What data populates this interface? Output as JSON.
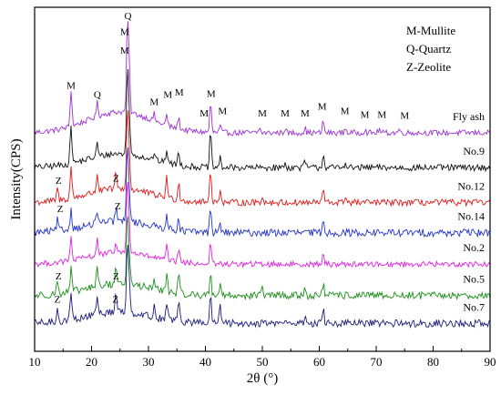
{
  "chart_data": {
    "type": "line",
    "xlabel": "2θ (°)",
    "ylabel": "Intensity(CPS)",
    "xlim": [
      10,
      90
    ],
    "x_ticks": [
      10,
      20,
      30,
      40,
      50,
      60,
      70,
      80,
      90
    ],
    "grid": false,
    "legend": {
      "placement": "top-right",
      "entries": [
        "M-Mullite",
        "Q-Quartz",
        "Z-Zeolite"
      ]
    },
    "series": [
      {
        "name": "Fly ash",
        "color": "#9b2fd8",
        "baseline": 8.2,
        "noise": 0.12,
        "hump": 0.9,
        "peaks": [
          [
            16.4,
            1.6
          ],
          [
            21.0,
            0.6
          ],
          [
            26.3,
            3.7
          ],
          [
            26.6,
            2.0
          ],
          [
            31.0,
            0.3
          ],
          [
            33.2,
            0.45
          ],
          [
            35.3,
            0.5
          ],
          [
            40.9,
            1.3
          ],
          [
            42.6,
            0.3
          ],
          [
            49.5,
            0.2
          ],
          [
            54.0,
            0.2
          ],
          [
            57.5,
            0.2
          ],
          [
            60.7,
            0.5
          ],
          [
            64.6,
            0.2
          ],
          [
            68.0,
            0.15
          ],
          [
            70.5,
            0.15
          ],
          [
            74.0,
            0.15
          ]
        ]
      },
      {
        "name": "No.9",
        "color": "#111111",
        "baseline": 6.7,
        "noise": 0.14,
        "hump": 0.6,
        "peaks": [
          [
            16.4,
            1.7
          ],
          [
            21.0,
            0.6
          ],
          [
            26.3,
            3.5
          ],
          [
            26.6,
            1.8
          ],
          [
            31.0,
            0.3
          ],
          [
            33.2,
            0.6
          ],
          [
            35.3,
            0.6
          ],
          [
            40.9,
            1.5
          ],
          [
            42.6,
            0.4
          ],
          [
            54.0,
            0.2
          ],
          [
            57.5,
            0.3
          ],
          [
            60.7,
            0.6
          ],
          [
            64.6,
            0.3
          ]
        ]
      },
      {
        "name": "No.12",
        "color": "#e01818",
        "baseline": 5.2,
        "noise": 0.14,
        "hump": 0.6,
        "peaks": [
          [
            14.0,
            0.5
          ],
          [
            16.4,
            1.4
          ],
          [
            21.0,
            0.8
          ],
          [
            24.3,
            0.7
          ],
          [
            26.3,
            3.3
          ],
          [
            26.6,
            1.6
          ],
          [
            33.2,
            0.9
          ],
          [
            35.3,
            0.8
          ],
          [
            40.9,
            1.5
          ],
          [
            42.6,
            0.6
          ],
          [
            50.0,
            0.3
          ],
          [
            60.7,
            0.6
          ],
          [
            64.6,
            0.3
          ]
        ]
      },
      {
        "name": "No.14",
        "color": "#2233cc",
        "baseline": 3.9,
        "noise": 0.16,
        "hump": 0.5,
        "peaks": [
          [
            14.0,
            0.5
          ],
          [
            16.4,
            0.9
          ],
          [
            21.0,
            0.6
          ],
          [
            24.3,
            0.6
          ],
          [
            26.3,
            3.2
          ],
          [
            26.6,
            1.4
          ],
          [
            33.2,
            0.7
          ],
          [
            35.3,
            0.6
          ],
          [
            40.9,
            1.1
          ],
          [
            42.6,
            0.4
          ],
          [
            60.7,
            0.5
          ]
        ]
      },
      {
        "name": "No.2",
        "color": "#e020e0",
        "baseline": 2.55,
        "noise": 0.12,
        "hump": 0.5,
        "peaks": [
          [
            16.4,
            1.0
          ],
          [
            21.0,
            0.7
          ],
          [
            24.3,
            0.5
          ],
          [
            26.3,
            3.1
          ],
          [
            26.6,
            1.3
          ],
          [
            33.2,
            0.6
          ],
          [
            35.3,
            0.6
          ],
          [
            40.9,
            0.9
          ],
          [
            60.7,
            0.4
          ]
        ]
      },
      {
        "name": "No.5",
        "color": "#1a8f1a",
        "baseline": 1.2,
        "noise": 0.16,
        "hump": 0.5,
        "peaks": [
          [
            14.0,
            0.6
          ],
          [
            16.4,
            1.0
          ],
          [
            21.0,
            0.9
          ],
          [
            24.3,
            0.8
          ],
          [
            26.3,
            3.0
          ],
          [
            26.6,
            1.3
          ],
          [
            31.0,
            0.4
          ],
          [
            33.2,
            0.8
          ],
          [
            35.3,
            0.8
          ],
          [
            40.9,
            1.0
          ],
          [
            42.6,
            0.6
          ],
          [
            50.0,
            0.4
          ],
          [
            57.5,
            0.3
          ],
          [
            60.7,
            0.5
          ]
        ]
      },
      {
        "name": "No.7",
        "color": "#1c1c7a",
        "baseline": 0.0,
        "noise": 0.16,
        "hump": 0.5,
        "peaks": [
          [
            14.0,
            0.6
          ],
          [
            16.4,
            1.3
          ],
          [
            21.0,
            0.9
          ],
          [
            24.3,
            0.8
          ],
          [
            26.3,
            3.0
          ],
          [
            26.6,
            1.3
          ],
          [
            31.0,
            0.4
          ],
          [
            33.2,
            0.8
          ],
          [
            35.3,
            1.0
          ],
          [
            40.9,
            1.2
          ],
          [
            42.6,
            0.8
          ],
          [
            50.0,
            0.3
          ],
          [
            54.0,
            0.2
          ],
          [
            57.5,
            0.3
          ],
          [
            60.7,
            0.6
          ]
        ]
      }
    ],
    "peak_labels": [
      {
        "text": "M",
        "x": 16.4,
        "y": 10.1
      },
      {
        "text": "Q",
        "x": 21.0,
        "y": 9.7
      },
      {
        "text": "Q",
        "x": 26.4,
        "y": 13.1
      },
      {
        "text": "M",
        "x": 25.8,
        "y": 12.4
      },
      {
        "text": "M",
        "x": 25.8,
        "y": 11.6
      },
      {
        "text": "M",
        "x": 31.0,
        "y": 9.4
      },
      {
        "text": "M",
        "x": 33.4,
        "y": 9.7
      },
      {
        "text": "M",
        "x": 35.4,
        "y": 9.8
      },
      {
        "text": "M",
        "x": 39.8,
        "y": 8.9
      },
      {
        "text": "M",
        "x": 41.0,
        "y": 9.75
      },
      {
        "text": "M",
        "x": 43.0,
        "y": 9.0
      },
      {
        "text": "M",
        "x": 50.0,
        "y": 8.9
      },
      {
        "text": "M",
        "x": 54.0,
        "y": 8.9
      },
      {
        "text": "M",
        "x": 57.5,
        "y": 8.9
      },
      {
        "text": "M",
        "x": 60.5,
        "y": 9.2
      },
      {
        "text": "M",
        "x": 64.5,
        "y": 9.0
      },
      {
        "text": "M",
        "x": 68.0,
        "y": 8.85
      },
      {
        "text": "M",
        "x": 71.0,
        "y": 8.85
      },
      {
        "text": "M",
        "x": 75.0,
        "y": 8.8
      },
      {
        "text": "Z",
        "x": 14.2,
        "y": 6.0
      },
      {
        "text": "Z",
        "x": 24.3,
        "y": 6.1
      },
      {
        "text": "Z",
        "x": 14.5,
        "y": 4.8
      },
      {
        "text": "Z",
        "x": 24.6,
        "y": 4.9
      },
      {
        "text": "Z",
        "x": 14.2,
        "y": 1.9
      },
      {
        "text": "Z",
        "x": 24.3,
        "y": 1.9
      },
      {
        "text": "Z",
        "x": 14.0,
        "y": 0.9
      },
      {
        "text": "Z",
        "x": 24.2,
        "y": 0.9
      }
    ]
  }
}
